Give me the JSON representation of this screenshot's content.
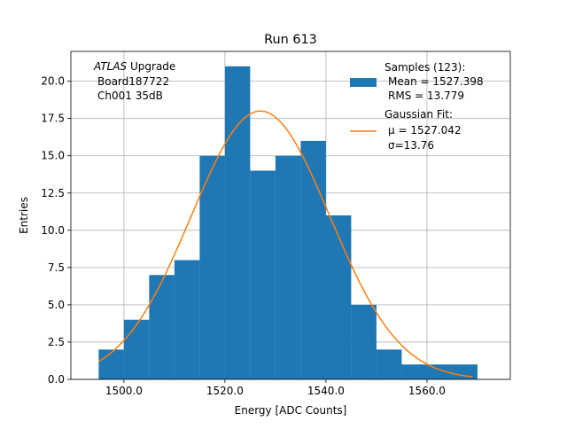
{
  "chart_data": {
    "type": "bar",
    "title": "Run 613",
    "xlabel": "Energy [ADC Counts]",
    "ylabel": "Entries",
    "xlim": [
      1489.5,
      1576.5
    ],
    "ylim": [
      0,
      22
    ],
    "grid": true,
    "x_ticks": [
      1500,
      1520,
      1540,
      1560
    ],
    "x_tick_labels": [
      "1500.0",
      "1520.0",
      "1540.0",
      "1560.0"
    ],
    "y_ticks": [
      0,
      2.5,
      5,
      7.5,
      10,
      12.5,
      15,
      17.5,
      20
    ],
    "y_tick_labels": [
      "0.0",
      "2.5",
      "5.0",
      "7.5",
      "10.0",
      "12.5",
      "15.0",
      "17.5",
      "20.0"
    ],
    "bin_edges": [
      1495,
      1500,
      1505,
      1510,
      1515,
      1520,
      1525,
      1530,
      1535,
      1540,
      1545,
      1550,
      1555,
      1560,
      1565,
      1570
    ],
    "counts": [
      2,
      4,
      7,
      8,
      15,
      21,
      14,
      15,
      16,
      11,
      5,
      2,
      1,
      1,
      1
    ],
    "fit": {
      "mu": 1527.042,
      "sigma": 13.76,
      "peak": 18,
      "x_range": [
        1495,
        1569
      ]
    },
    "annotation": {
      "italic": "ATLAS",
      "lines": [
        " Upgrade",
        "Board187722",
        "Ch001 35dB"
      ]
    },
    "legend": {
      "position": "top-right",
      "samples_lines": [
        "Samples (123):",
        "Mean = 1527.398",
        "RMS = 13.779"
      ],
      "fit_lines": [
        "Gaussian Fit:",
        "μ = 1527.042",
        "σ=13.76"
      ],
      "samples_color": "#1f77b4",
      "fit_color": "#ff7f0e"
    },
    "colors": {
      "bars": "#1f77b4",
      "fit": "#ff7f0e",
      "grid": "#b0b0b0"
    }
  }
}
